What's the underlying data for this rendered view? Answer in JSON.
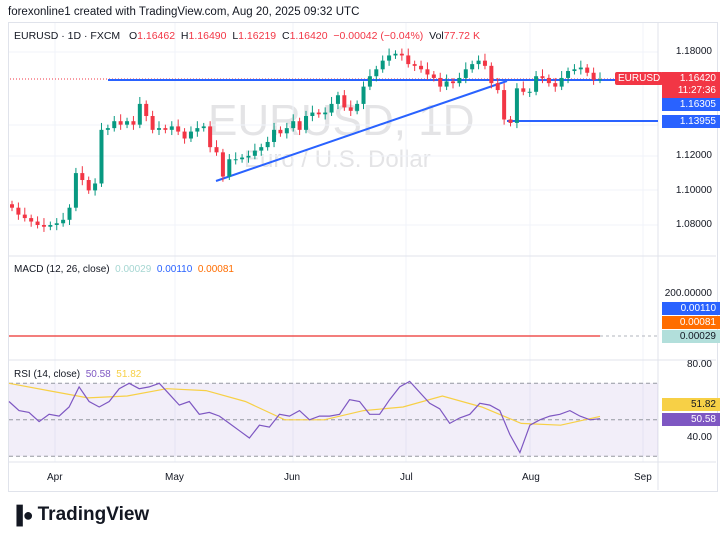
{
  "header": {
    "attribution": "forexonline1 created with TradingView.com, Aug 20, 2025 09:32 UTC"
  },
  "legend": {
    "symbol": "EURUSD · 1D · FXCM",
    "o_label": "O",
    "o": "1.16462",
    "h_label": "H",
    "h": "1.16490",
    "l_label": "L",
    "l": "1.16219",
    "c_label": "C",
    "c": "1.16420",
    "change": "−0.00042 (−0.04%)",
    "vol_label": "Vol",
    "vol": "77.72 K"
  },
  "watermark": {
    "title": "EURUSD, 1D",
    "subtitle": "Euro / U.S. Dollar"
  },
  "price_axis": {
    "ticks": [
      "1.18000",
      "1.12000",
      "1.10000",
      "1.08000"
    ],
    "symbol_tag": "EURUSD",
    "last_price": "1.16420",
    "countdown": "11:27:36",
    "line1": "1.16305",
    "line2": "1.13955"
  },
  "macd": {
    "title": "MACD (12, 26, close)",
    "v1": "0.00029",
    "v2": "0.00110",
    "v3": "0.00081",
    "axis_tick": "200.00000"
  },
  "rsi": {
    "title": "RSI (14, close)",
    "value": "50.58",
    "ma": "51.82",
    "ticks": [
      "80.00",
      "40.00"
    ]
  },
  "time_axis": [
    "Apr",
    "May",
    "Jun",
    "Jul",
    "Aug",
    "Sep"
  ],
  "footer": {
    "brand": "TradingView"
  },
  "colors": {
    "up": "#089981",
    "down": "#f23645",
    "line": "#2962ff",
    "rsi": "#7e57c2",
    "rsi_ma": "#f7d046",
    "macd": "#ff6d00"
  },
  "chart_data": {
    "type": "candlestick",
    "closes": [
      1.09,
      1.086,
      1.084,
      1.082,
      1.08,
      1.079,
      1.08,
      1.081,
      1.083,
      1.09,
      1.11,
      1.106,
      1.1,
      1.104,
      1.135,
      1.136,
      1.14,
      1.138,
      1.14,
      1.138,
      1.15,
      1.143,
      1.135,
      1.136,
      1.135,
      1.137,
      1.134,
      1.13,
      1.134,
      1.136,
      1.137,
      1.125,
      1.122,
      1.108,
      1.118,
      1.118,
      1.119,
      1.12,
      1.123,
      1.125,
      1.128,
      1.135,
      1.133,
      1.136,
      1.14,
      1.135,
      1.143,
      1.145,
      1.144,
      1.145,
      1.15,
      1.155,
      1.148,
      1.146,
      1.15,
      1.16,
      1.166,
      1.17,
      1.175,
      1.178,
      1.179,
      1.178,
      1.173,
      1.172,
      1.17,
      1.167,
      1.165,
      1.16,
      1.163,
      1.162,
      1.165,
      1.17,
      1.173,
      1.175,
      1.172,
      1.162,
      1.158,
      1.141,
      1.139,
      1.159,
      1.157,
      1.157,
      1.166,
      1.165,
      1.162,
      1.16,
      1.165,
      1.169,
      1.17,
      1.171,
      1.168,
      1.164,
      1.1642
    ],
    "rsi": [
      60,
      55,
      54,
      49,
      53,
      52,
      57,
      68,
      60,
      57,
      60,
      67,
      70,
      67,
      68,
      70,
      64,
      58,
      60,
      53,
      54,
      52,
      48,
      44,
      40,
      47,
      46,
      53,
      52,
      55,
      50,
      52,
      52,
      53,
      61,
      60,
      53,
      53,
      61,
      68,
      71,
      65,
      59,
      56,
      48,
      51,
      53,
      59,
      58,
      55,
      42,
      32,
      47,
      50,
      52,
      53,
      55,
      52,
      50,
      50.58
    ],
    "rsi_ma": [
      70,
      66,
      62,
      63,
      67,
      66,
      60,
      50,
      50,
      55,
      57,
      63,
      57,
      48,
      47,
      51.82
    ],
    "levels": [
      1.16305,
      1.13955
    ]
  }
}
